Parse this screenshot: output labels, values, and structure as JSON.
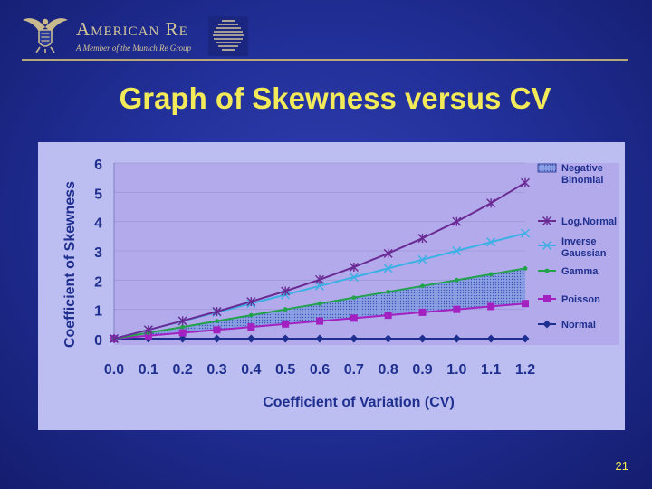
{
  "header": {
    "company_name": "American Re",
    "tagline": "A Member of the Munich Re Group"
  },
  "slide": {
    "title": "Graph of Skewness versus CV",
    "number": "21"
  },
  "colors": {
    "background": "#22309a",
    "title": "#f2ea58",
    "plot_area": "#b9b4ec",
    "log_normal": "#6a2a94",
    "inverse_gaussian": "#3bb0e4",
    "gamma": "#22a24a",
    "poisson": "#a321c0",
    "normal": "#1f2f8f",
    "negative_binomial_fill": "#7d94dc"
  },
  "chart_data": {
    "type": "line",
    "title": "",
    "xlabel": "Coefficient of Variation (CV)",
    "ylabel": "Coefficient of Skewness",
    "x": [
      0.0,
      0.1,
      0.2,
      0.3,
      0.4,
      0.5,
      0.6,
      0.7,
      0.8,
      0.9,
      1.0,
      1.1,
      1.2
    ],
    "x_tick_labels": [
      "0.0",
      "0.1",
      "0.2",
      "0.3",
      "0.4",
      "0.5",
      "0.6",
      "0.7",
      "0.8",
      "0.9",
      "1.0",
      "1.1",
      "1.2"
    ],
    "y_ticks": [
      0,
      1,
      2,
      3,
      4,
      5,
      6
    ],
    "xlim": [
      0,
      1.2
    ],
    "ylim": [
      0,
      6
    ],
    "grid": "horizontal",
    "legend_position": "right",
    "shaded_region": {
      "name": "Negative Binomial",
      "between": [
        "Poisson",
        "Gamma"
      ],
      "color": "#7d94dc"
    },
    "series": [
      {
        "name": "Log.Normal",
        "marker": "star",
        "color": "#6a2a94",
        "values": [
          0,
          0.301,
          0.608,
          0.927,
          1.264,
          1.625,
          2.016,
          2.443,
          2.912,
          3.429,
          4.0,
          4.631,
          5.328
        ]
      },
      {
        "name": "Inverse Gaussian",
        "marker": "x",
        "color": "#3bb0e4",
        "values": [
          0,
          0.3,
          0.6,
          0.9,
          1.2,
          1.5,
          1.8,
          2.1,
          2.4,
          2.7,
          3.0,
          3.3,
          3.6
        ]
      },
      {
        "name": "Gamma",
        "marker": "dot",
        "color": "#22a24a",
        "values": [
          0,
          0.2,
          0.4,
          0.6,
          0.8,
          1.0,
          1.2,
          1.4,
          1.6,
          1.8,
          2.0,
          2.2,
          2.4
        ]
      },
      {
        "name": "Poisson",
        "marker": "square",
        "color": "#a321c0",
        "values": [
          0,
          0.1,
          0.2,
          0.3,
          0.4,
          0.5,
          0.6,
          0.7,
          0.8,
          0.9,
          1.0,
          1.1,
          1.2
        ]
      },
      {
        "name": "Normal",
        "marker": "diamond",
        "color": "#1f2f8f",
        "values": [
          0,
          0,
          0,
          0,
          0,
          0,
          0,
          0,
          0,
          0,
          0,
          0,
          0
        ]
      }
    ]
  }
}
